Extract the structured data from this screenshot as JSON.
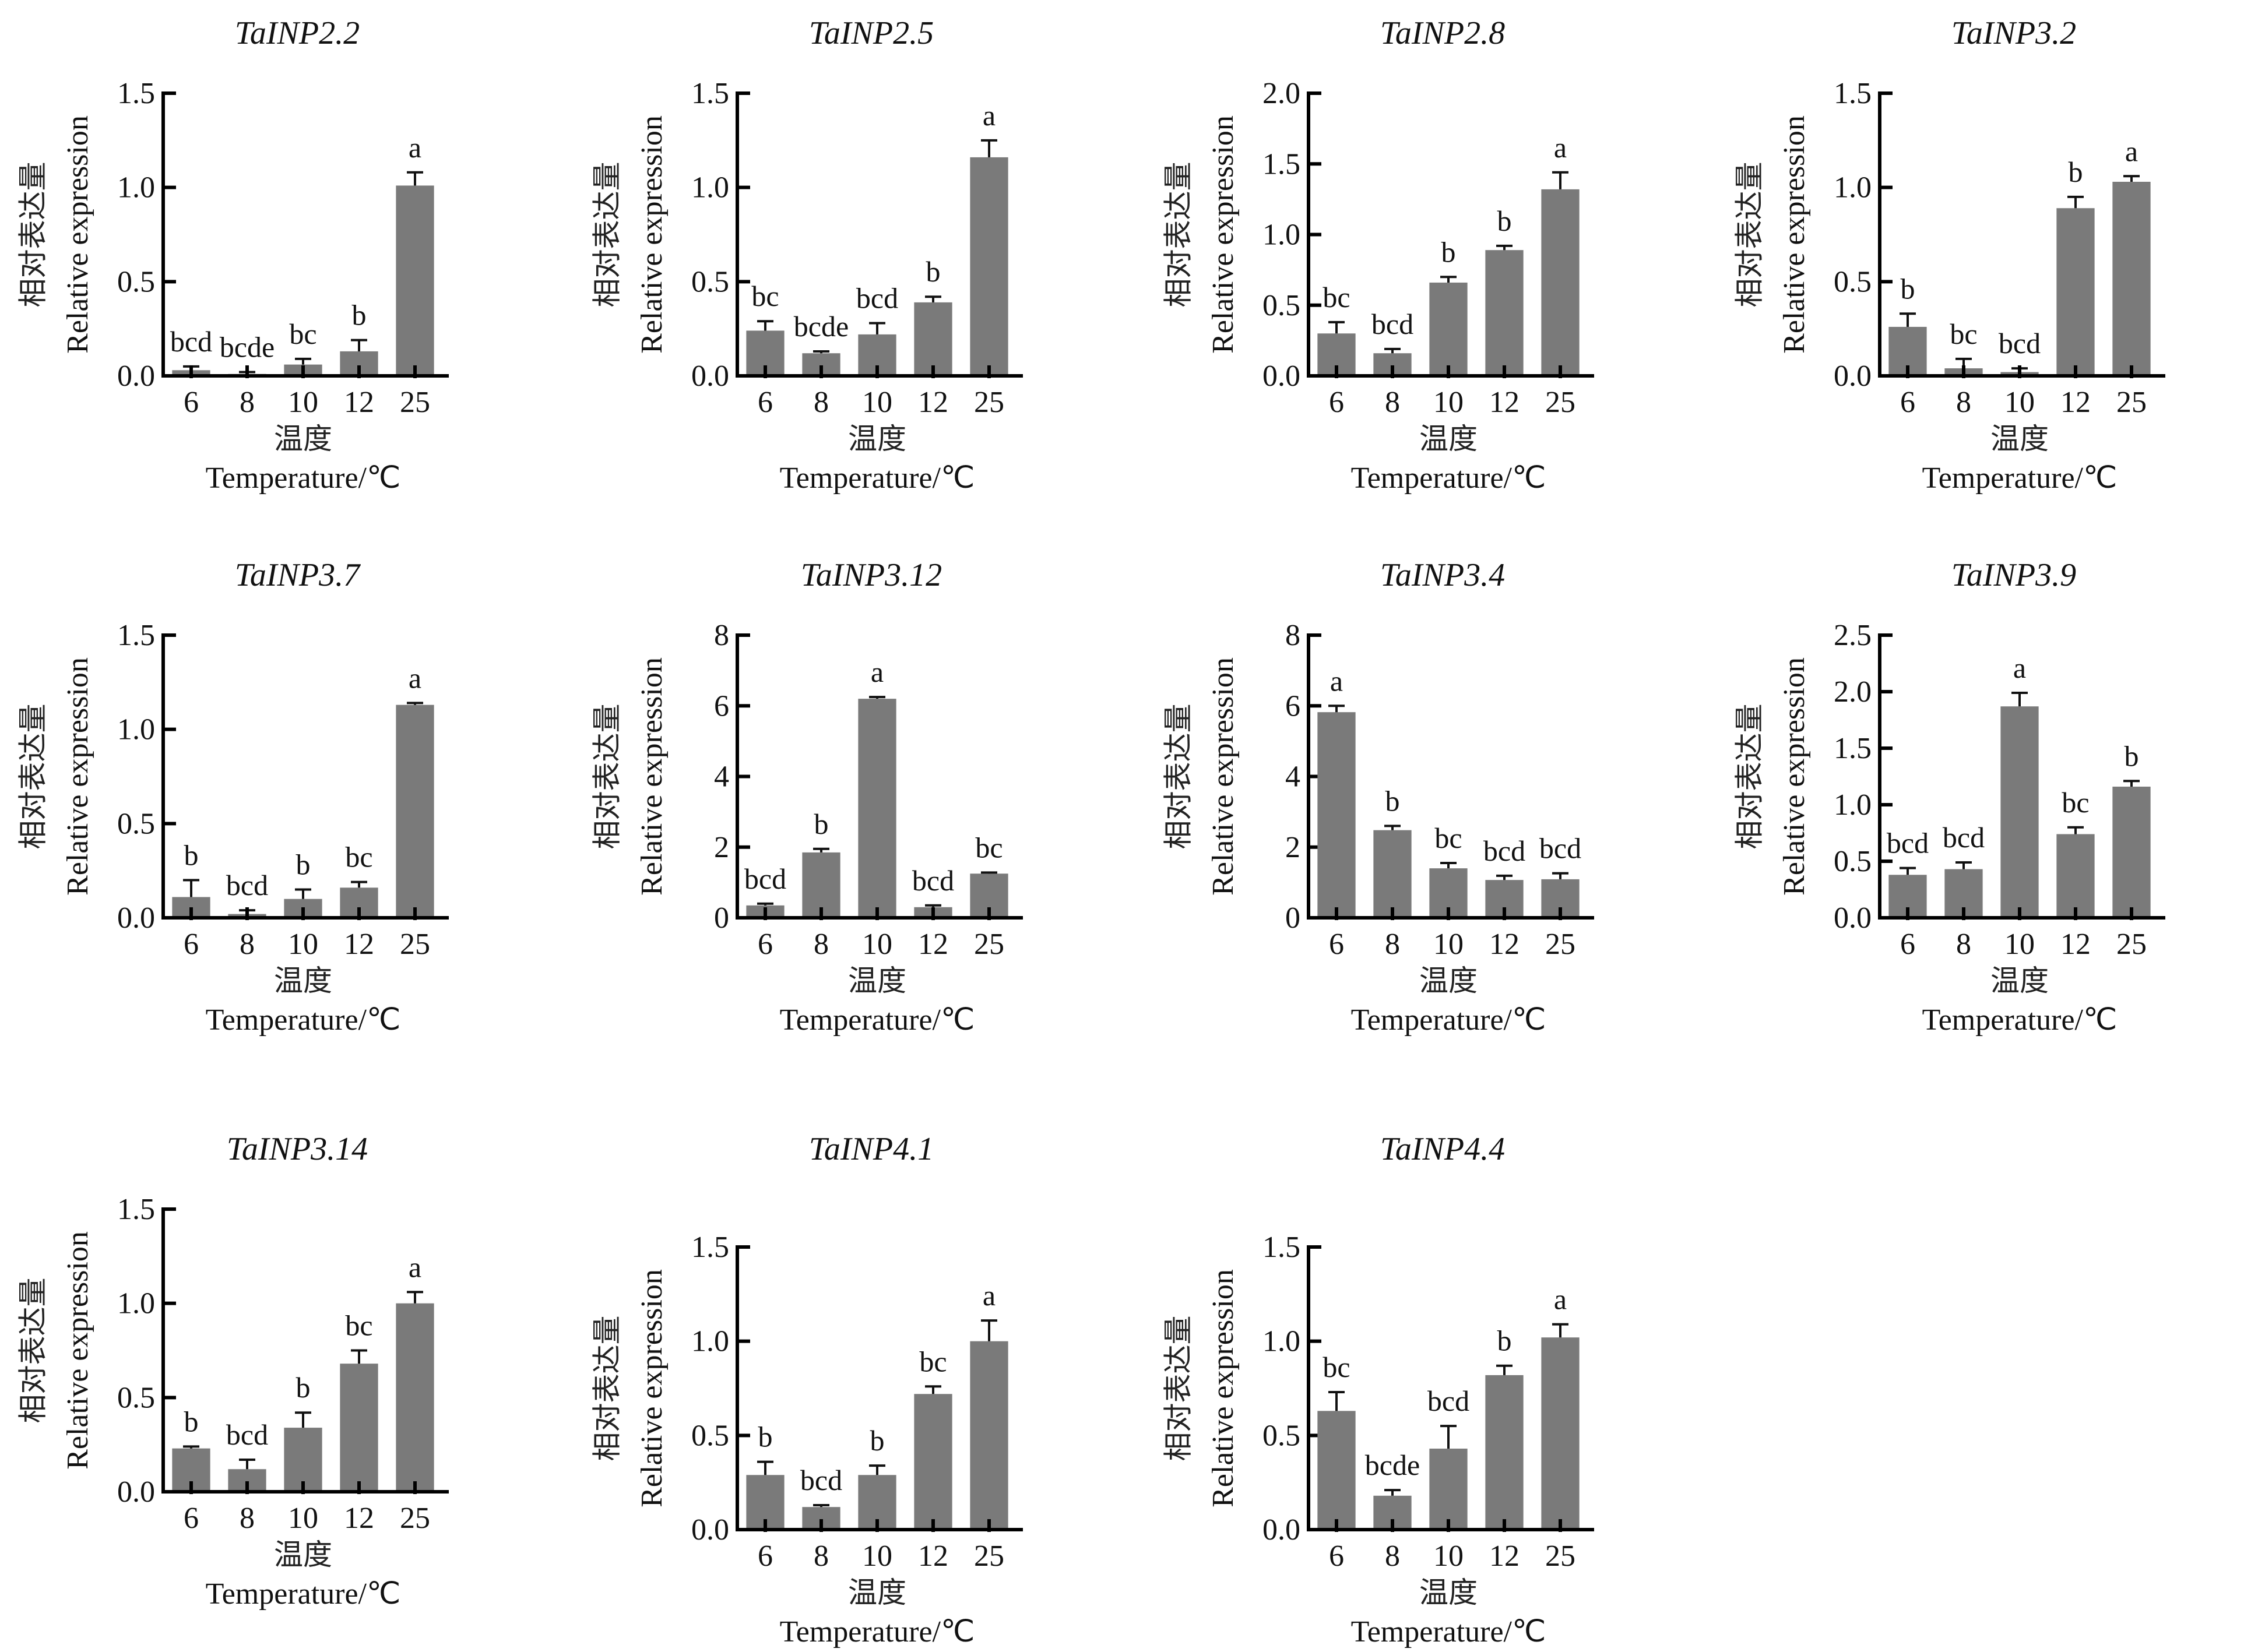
{
  "chart_data": [
    {
      "type": "bar",
      "title": "TaINP2.2",
      "categories": [
        "6",
        "8",
        "10",
        "12",
        "25"
      ],
      "values": [
        0.03,
        0.01,
        0.06,
        0.13,
        1.01
      ],
      "errors": [
        0.02,
        0.01,
        0.03,
        0.06,
        0.07
      ],
      "significance": [
        "bcd",
        "bcde",
        "bc",
        "b",
        "a"
      ],
      "ylim": [
        0,
        1.5
      ],
      "yticks": [
        "0.0",
        "0.5",
        "1.0",
        "1.5"
      ],
      "ylabel_cn": "相对表达量",
      "ylabel": "Relative expression",
      "xlabel_cn": "温度",
      "xlabel": "Temperature/℃"
    },
    {
      "type": "bar",
      "title": "TaINP2.5",
      "categories": [
        "6",
        "8",
        "10",
        "12",
        "25"
      ],
      "values": [
        0.24,
        0.12,
        0.22,
        0.39,
        1.16
      ],
      "errors": [
        0.05,
        0.01,
        0.06,
        0.03,
        0.09
      ],
      "significance": [
        "bc",
        "bcde",
        "bcd",
        "b",
        "a"
      ],
      "ylim": [
        0,
        1.5
      ],
      "yticks": [
        "0.0",
        "0.5",
        "1.0",
        "1.5"
      ],
      "ylabel_cn": "相对表达量",
      "ylabel": "Relative expression",
      "xlabel_cn": "温度",
      "xlabel": "Temperature/℃"
    },
    {
      "type": "bar",
      "title": "TaINP2.8",
      "categories": [
        "6",
        "8",
        "10",
        "12",
        "25"
      ],
      "values": [
        0.3,
        0.16,
        0.66,
        0.89,
        1.32
      ],
      "errors": [
        0.08,
        0.03,
        0.04,
        0.03,
        0.12
      ],
      "significance": [
        "bc",
        "bcd",
        "b",
        "b",
        "a"
      ],
      "ylim": [
        0,
        2.0
      ],
      "yticks": [
        "0.0",
        "0.5",
        "1.0",
        "1.5",
        "2.0"
      ],
      "ylabel_cn": "相对表达量",
      "ylabel": "Relative expression",
      "xlabel_cn": "温度",
      "xlabel": "Temperature/℃"
    },
    {
      "type": "bar",
      "title": "TaINP3.2",
      "categories": [
        "6",
        "8",
        "10",
        "12",
        "25"
      ],
      "values": [
        0.26,
        0.04,
        0.02,
        0.89,
        1.03
      ],
      "errors": [
        0.07,
        0.05,
        0.02,
        0.06,
        0.03
      ],
      "significance": [
        "b",
        "bc",
        "bcd",
        "b",
        "a"
      ],
      "ylim": [
        0,
        1.5
      ],
      "yticks": [
        "0.0",
        "0.5",
        "1.0",
        "1.5"
      ],
      "ylabel_cn": "相对表达量",
      "ylabel": "Relative expression",
      "xlabel_cn": "温度",
      "xlabel": "Temperature/℃"
    },
    {
      "type": "bar",
      "title": "TaINP3.7",
      "categories": [
        "6",
        "8",
        "10",
        "12",
        "25"
      ],
      "values": [
        0.11,
        0.02,
        0.1,
        0.16,
        1.13
      ],
      "errors": [
        0.09,
        0.02,
        0.05,
        0.03,
        0.01
      ],
      "significance": [
        "b",
        "bcd",
        "b",
        "bc",
        "a"
      ],
      "ylim": [
        0,
        1.5
      ],
      "yticks": [
        "0.0",
        "0.5",
        "1.0",
        "1.5"
      ],
      "ylabel_cn": "相对表达量",
      "ylabel": "Relative expression",
      "xlabel_cn": "温度",
      "xlabel": "Temperature/℃"
    },
    {
      "type": "bar",
      "title": "TaINP3.12",
      "categories": [
        "6",
        "8",
        "10",
        "12",
        "25"
      ],
      "values": [
        0.35,
        1.85,
        6.2,
        0.3,
        1.25
      ],
      "errors": [
        0.05,
        0.1,
        0.05,
        0.05,
        0.03
      ],
      "significance": [
        "bcd",
        "b",
        "a",
        "bcd",
        "bc"
      ],
      "ylim": [
        0,
        8
      ],
      "yticks": [
        "0",
        "2",
        "4",
        "6",
        "8"
      ],
      "ylabel_cn": "相对表达量",
      "ylabel": "Relative expression",
      "xlabel_cn": "温度",
      "xlabel": "Temperature/℃"
    },
    {
      "type": "bar",
      "title": "TaINP3.4",
      "categories": [
        "6",
        "8",
        "10",
        "12",
        "25"
      ],
      "values": [
        5.82,
        2.48,
        1.4,
        1.07,
        1.09
      ],
      "errors": [
        0.18,
        0.12,
        0.15,
        0.12,
        0.17
      ],
      "significance": [
        "a",
        "b",
        "bc",
        "bcd",
        "bcd"
      ],
      "ylim": [
        0,
        8
      ],
      "yticks": [
        "0",
        "2",
        "4",
        "6",
        "8"
      ],
      "ylabel_cn": "相对表达量",
      "ylabel": "Relative expression",
      "xlabel_cn": "温度",
      "xlabel": "Temperature/℃"
    },
    {
      "type": "bar",
      "title": "TaINP3.9",
      "categories": [
        "6",
        "8",
        "10",
        "12",
        "25"
      ],
      "values": [
        0.38,
        0.43,
        1.87,
        0.74,
        1.16
      ],
      "errors": [
        0.06,
        0.06,
        0.12,
        0.06,
        0.05
      ],
      "significance": [
        "bcd",
        "bcd",
        "a",
        "bc",
        "b"
      ],
      "ylim": [
        0,
        2.5
      ],
      "yticks": [
        "0.0",
        "0.5",
        "1.0",
        "1.5",
        "2.0",
        "2.5"
      ],
      "ylabel_cn": "相对表达量",
      "ylabel": "Relative expression",
      "xlabel_cn": "温度",
      "xlabel": "Temperature/℃"
    },
    {
      "type": "bar",
      "title": "TaINP3.14",
      "categories": [
        "6",
        "8",
        "10",
        "12",
        "25"
      ],
      "values": [
        0.23,
        0.12,
        0.34,
        0.68,
        1.0
      ],
      "errors": [
        0.01,
        0.05,
        0.08,
        0.07,
        0.06
      ],
      "significance": [
        "b",
        "bcd",
        "b",
        "bc",
        "a"
      ],
      "ylim": [
        0,
        1.5
      ],
      "yticks": [
        "0.0",
        "0.5",
        "1.0",
        "1.5"
      ],
      "ylabel_cn": "相对表达量",
      "ylabel": "Relative expression",
      "xlabel_cn": "温度",
      "xlabel": "Temperature/℃"
    },
    {
      "type": "bar",
      "title": "TaINP4.1",
      "categories": [
        "6",
        "8",
        "10",
        "12",
        "25"
      ],
      "values": [
        0.29,
        0.12,
        0.29,
        0.72,
        1.0
      ],
      "errors": [
        0.07,
        0.01,
        0.05,
        0.04,
        0.11
      ],
      "significance": [
        "b",
        "bcd",
        "b",
        "bc",
        "a"
      ],
      "ylim": [
        0,
        1.5
      ],
      "yticks": [
        "0.0",
        "0.5",
        "1.0",
        "1.5"
      ],
      "ylabel_cn": "相对表达量",
      "ylabel": "Relative expression",
      "xlabel_cn": "温度",
      "xlabel": "Temperature/℃"
    },
    {
      "type": "bar",
      "title": "TaINP4.4",
      "categories": [
        "6",
        "8",
        "10",
        "12",
        "25"
      ],
      "values": [
        0.63,
        0.18,
        0.43,
        0.82,
        1.02
      ],
      "errors": [
        0.1,
        0.03,
        0.12,
        0.05,
        0.07
      ],
      "significance": [
        "bc",
        "bcde",
        "bcd",
        "b",
        "a"
      ],
      "ylim": [
        0,
        1.5
      ],
      "yticks": [
        "0.0",
        "0.5",
        "1.0",
        "1.5"
      ],
      "ylabel_cn": "相对表达量",
      "ylabel": "Relative expression",
      "xlabel_cn": "温度",
      "xlabel": "Temperature/℃"
    }
  ]
}
